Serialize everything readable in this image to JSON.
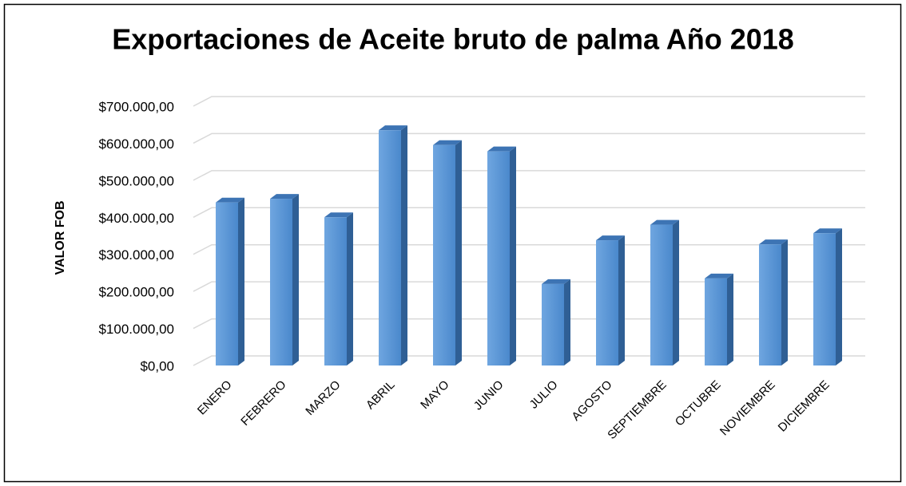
{
  "chart_data": {
    "type": "bar",
    "title": "Exportaciones de Aceite bruto de palma Año 2018",
    "y_label": "VALOR FOB",
    "categories": [
      "ENERO",
      "FEBRERO",
      "MARZO",
      "ABRIL",
      "MAYO",
      "JUNIO",
      "JULIO",
      "AGOSTO",
      "SEPTIEMBRE",
      "OCTUBRE",
      "NOVIEMBRE",
      "DICIEMBRE"
    ],
    "values": [
      440000,
      450000,
      400000,
      635000,
      595000,
      578000,
      220000,
      338000,
      380000,
      235000,
      327000,
      357000
    ],
    "color": "#5b9bd5",
    "ylim": [
      0,
      700000
    ],
    "yticks": [
      {
        "value": 0,
        "label": "$0,00"
      },
      {
        "value": 100000,
        "label": "$100.000,00"
      },
      {
        "value": 200000,
        "label": "$200.000,00"
      },
      {
        "value": 300000,
        "label": "$300.000,00"
      },
      {
        "value": 400000,
        "label": "$400.000,00"
      },
      {
        "value": 500000,
        "label": "$500.000,00"
      },
      {
        "value": 600000,
        "label": "$600.000,00"
      },
      {
        "value": 700000,
        "label": "$700.000,00"
      }
    ],
    "grid": true
  }
}
